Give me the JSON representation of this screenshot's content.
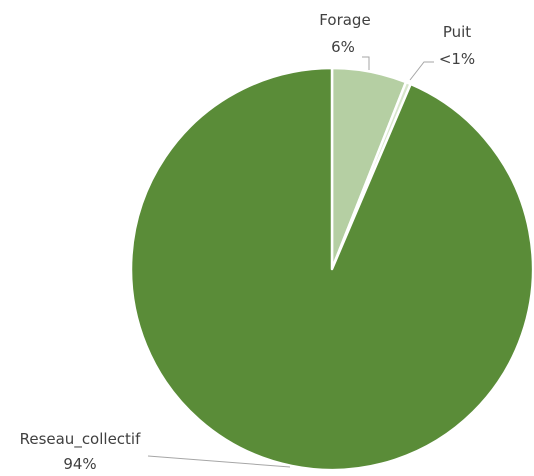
{
  "chart_data": {
    "type": "pie",
    "slices": [
      {
        "label": "Forage",
        "display": "6%",
        "value": 6.0,
        "color": "#b5cfa3"
      },
      {
        "label": "Puit",
        "display": "<1%",
        "value": 0.4,
        "color": "#d8e6cc"
      },
      {
        "label": "Reseau_collectif",
        "display": "94%",
        "value": 93.6,
        "color": "#5a8c38"
      }
    ],
    "start_angle": "top, clockwise",
    "legend": "none"
  }
}
